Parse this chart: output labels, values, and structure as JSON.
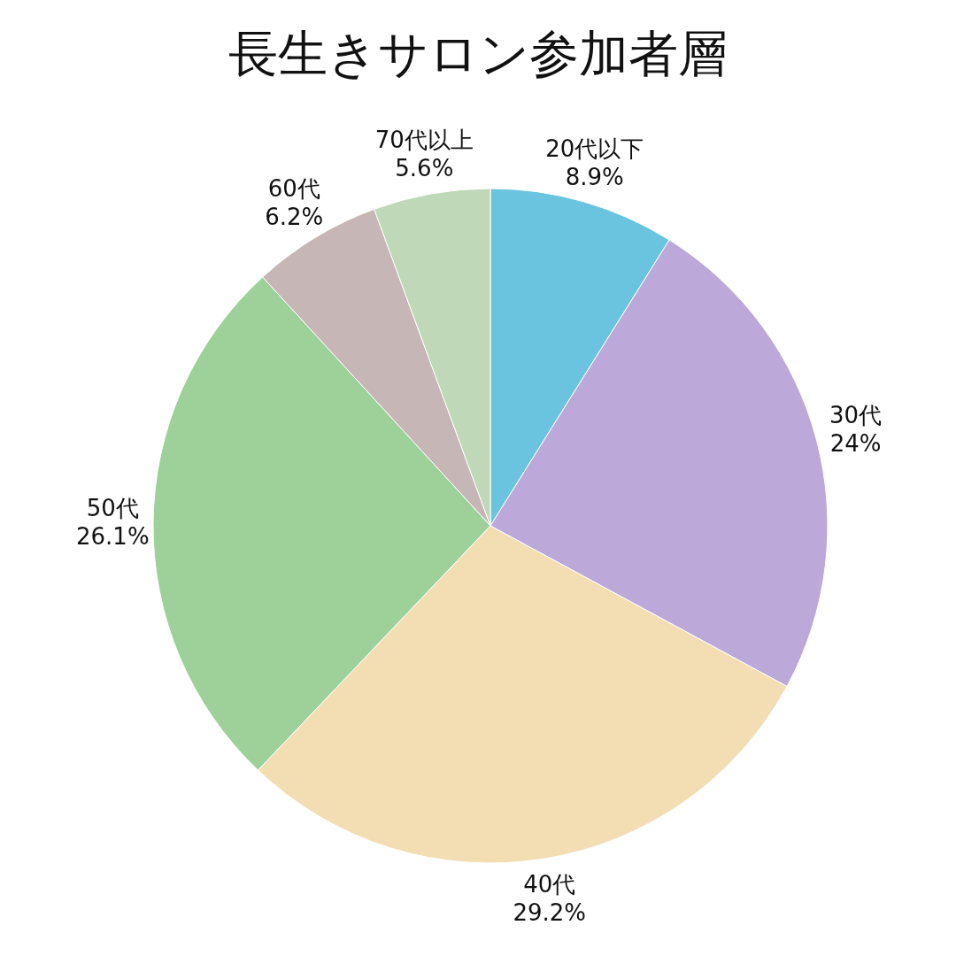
{
  "chart_data": {
    "type": "pie",
    "title": "長生きサロン参加者層",
    "categories": [
      "20代以下",
      "30代",
      "40代",
      "50代",
      "60代",
      "70代以上"
    ],
    "values": [
      8.9,
      24,
      29.2,
      26.1,
      6.2,
      5.6
    ],
    "value_labels": [
      "8.9%",
      "24%",
      "29.2%",
      "26.1%",
      "6.2%",
      "5.6%"
    ],
    "colors": [
      "#6ac4df",
      "#bca9d9",
      "#f3ddb3",
      "#9dd199",
      "#c6b6b6",
      "#bfd8b8"
    ],
    "legend": false
  }
}
